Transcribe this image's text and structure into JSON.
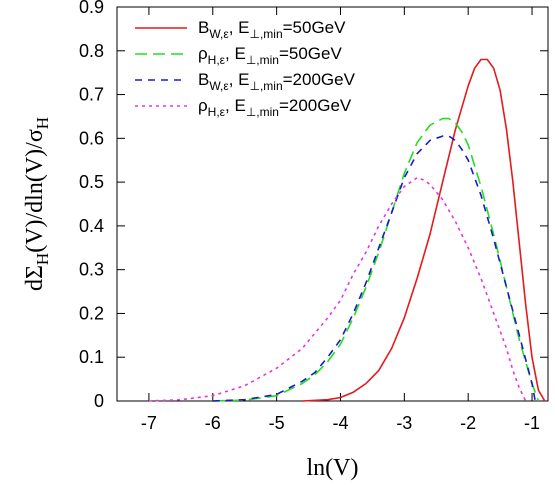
{
  "chart_data": {
    "type": "line",
    "xlabel": "ln(V)",
    "ylabel": "dΣ_H(V)/dln(V)/σ_H",
    "xlim": [
      -7.5,
      -0.75
    ],
    "ylim": [
      0,
      0.9
    ],
    "xticks": [
      "-7",
      "-6",
      "-5",
      "-4",
      "-3",
      "-2",
      "-1"
    ],
    "yticks": [
      "0",
      "0.1",
      "0.2",
      "0.3",
      "0.4",
      "0.5",
      "0.6",
      "0.7",
      "0.8",
      "0.9"
    ],
    "grid": false,
    "legend_position": "top-left",
    "series": [
      {
        "name": "B_{W,ε}, E_{⊥,min}=50GeV",
        "legend": {
          "sym": "B",
          "sub1": "W,ε",
          "mid": ", E",
          "sub2": "⊥,min",
          "tail": "=50GeV"
        },
        "color": "#e41a1c",
        "dash": "solid",
        "x": [
          -4.6,
          -4.2,
          -4.0,
          -3.8,
          -3.6,
          -3.4,
          -3.2,
          -3.0,
          -2.8,
          -2.6,
          -2.4,
          -2.2,
          -2.0,
          -1.9,
          -1.8,
          -1.7,
          -1.6,
          -1.5,
          -1.4,
          -1.3,
          -1.2,
          -1.1,
          -1.0,
          -0.9,
          -0.8
        ],
        "y": [
          0.0,
          0.003,
          0.008,
          0.02,
          0.04,
          0.07,
          0.12,
          0.19,
          0.28,
          0.38,
          0.5,
          0.62,
          0.72,
          0.76,
          0.78,
          0.78,
          0.76,
          0.71,
          0.62,
          0.5,
          0.36,
          0.22,
          0.1,
          0.025,
          0.0
        ]
      },
      {
        "name": "ρ_{H,ε}, E_{⊥,min}=50GeV",
        "legend": {
          "sym": "ρ",
          "sub1": "H,ε",
          "mid": ", E",
          "sub2": "⊥,min",
          "tail": "=50GeV"
        },
        "color": "#22dd22",
        "dash": "long",
        "x": [
          -6.0,
          -5.5,
          -5.0,
          -4.6,
          -4.4,
          -4.2,
          -4.0,
          -3.8,
          -3.6,
          -3.4,
          -3.2,
          -3.0,
          -2.8,
          -2.6,
          -2.4,
          -2.3,
          -2.2,
          -2.1,
          -2.0,
          -1.8,
          -1.6,
          -1.4,
          -1.2,
          -1.0,
          -0.9
        ],
        "y": [
          0.0,
          0.002,
          0.012,
          0.04,
          0.06,
          0.09,
          0.13,
          0.19,
          0.26,
          0.34,
          0.43,
          0.52,
          0.59,
          0.63,
          0.645,
          0.645,
          0.635,
          0.615,
          0.585,
          0.49,
          0.38,
          0.26,
          0.14,
          0.04,
          0.0
        ]
      },
      {
        "name": "B_{W,ε}, E_{⊥,min}=200GeV",
        "legend": {
          "sym": "B",
          "sub1": "W,ε",
          "mid": ", E",
          "sub2": "⊥,min",
          "tail": "=200GeV"
        },
        "color": "#1a1acd",
        "dash": "short",
        "x": [
          -6.0,
          -5.5,
          -5.0,
          -4.6,
          -4.4,
          -4.2,
          -4.0,
          -3.8,
          -3.6,
          -3.4,
          -3.2,
          -3.0,
          -2.8,
          -2.6,
          -2.4,
          -2.3,
          -2.2,
          -2.1,
          -2.0,
          -1.8,
          -1.6,
          -1.4,
          -1.2,
          -1.0,
          -0.95
        ],
        "y": [
          0.0,
          0.003,
          0.015,
          0.045,
          0.065,
          0.1,
          0.14,
          0.2,
          0.27,
          0.35,
          0.43,
          0.51,
          0.565,
          0.595,
          0.605,
          0.605,
          0.595,
          0.575,
          0.55,
          0.47,
          0.37,
          0.26,
          0.15,
          0.04,
          0.0
        ]
      },
      {
        "name": "ρ_{H,ε}, E_{⊥,min}=200GeV",
        "legend": {
          "sym": "ρ",
          "sub1": "H,ε",
          "mid": ", E",
          "sub2": "⊥,min",
          "tail": "=200GeV"
        },
        "color": "#e633e6",
        "dash": "dotted",
        "x": [
          -7.0,
          -6.5,
          -6.0,
          -5.5,
          -5.0,
          -4.6,
          -4.2,
          -4.0,
          -3.8,
          -3.6,
          -3.4,
          -3.2,
          -3.0,
          -2.9,
          -2.8,
          -2.7,
          -2.6,
          -2.4,
          -2.2,
          -2.0,
          -1.8,
          -1.6,
          -1.4,
          -1.3,
          -1.2,
          -1.1
        ],
        "y": [
          0.0,
          0.003,
          0.012,
          0.035,
          0.075,
          0.12,
          0.19,
          0.23,
          0.29,
          0.34,
          0.4,
          0.45,
          0.49,
          0.5,
          0.51,
          0.505,
          0.495,
          0.46,
          0.41,
          0.35,
          0.28,
          0.2,
          0.12,
          0.07,
          0.03,
          0.0
        ]
      }
    ]
  }
}
